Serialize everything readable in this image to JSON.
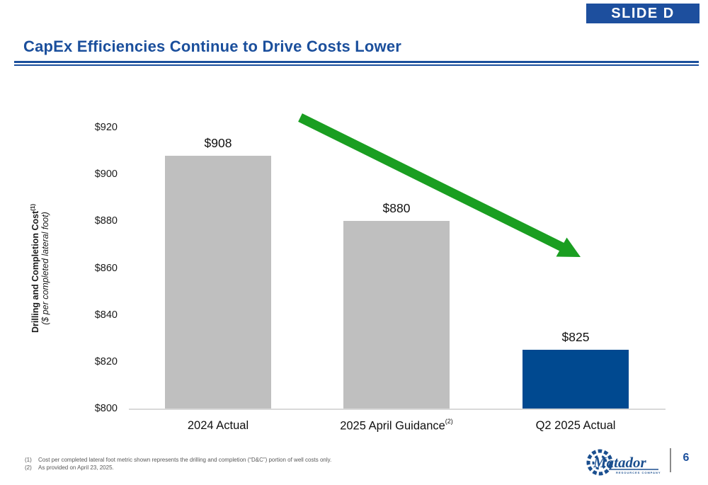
{
  "slide": {
    "badge": "SLIDE D",
    "title": "CapEx Efficiencies Continue to Drive Costs Lower",
    "page_number": "6",
    "logo": {
      "brand": "Matador",
      "sub": "RESOURCES COMPANY"
    },
    "footnotes": [
      {
        "num": "(1)",
        "text": "Cost per completed lateral foot metric shown represents the drilling and completion (“D&C”) portion of well costs only."
      },
      {
        "num": "(2)",
        "text": "As provided on April 23, 2025."
      }
    ]
  },
  "colors": {
    "title_blue": "#1b4f9c",
    "badge_blue": "#1d4f9e",
    "bar_gray": "#bfbfbf",
    "bar_blue": "#004990",
    "arrow_green": "#1a9e21",
    "footnote_gray": "#595959",
    "baseline_gray": "#d9d9d9"
  },
  "chart_data": {
    "type": "bar",
    "title": "",
    "categories": [
      "2024 Actual",
      "2025 April Guidance",
      "Q2 2025 Actual"
    ],
    "category_superscripts": [
      "",
      "(2)",
      ""
    ],
    "values": [
      908,
      880,
      825
    ],
    "value_labels": [
      "$908",
      "$880",
      "$825"
    ],
    "bar_colors": [
      "#bfbfbf",
      "#bfbfbf",
      "#004990"
    ],
    "ylabel_line1": "Drilling and Completion Cost",
    "ylabel_line1_sup": "(1)",
    "ylabel_line2": "($ per completed lateral foot)",
    "xlabel": "",
    "ylim": [
      800,
      920
    ],
    "ytick_values": [
      800,
      820,
      840,
      860,
      880,
      900,
      920
    ],
    "ytick_labels": [
      "$800",
      "$820",
      "$840",
      "$860",
      "$880",
      "$900",
      "$920"
    ],
    "grid": false,
    "legend": false,
    "annotation": "Thick green arrow slanting down from upper left to lower right indicating declining costs"
  }
}
